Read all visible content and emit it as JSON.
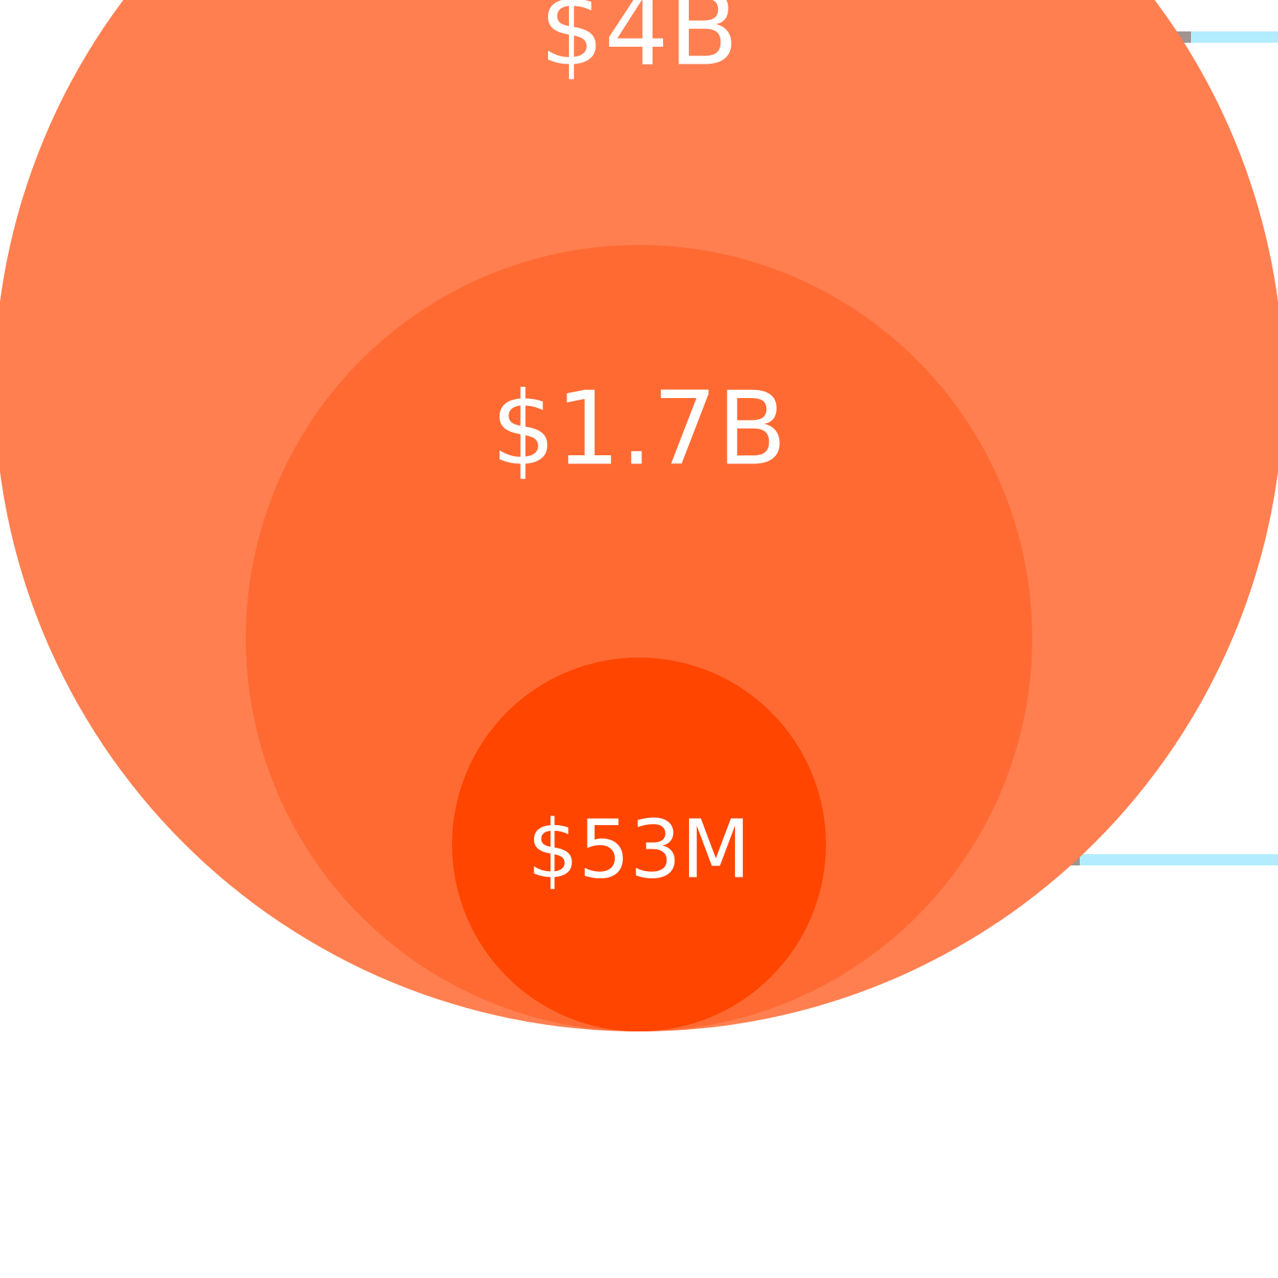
{
  "chart_data": {
    "type": "bubble",
    "title": "",
    "xlabel": "",
    "ylabel": "",
    "grid": false,
    "legend": "none",
    "items": [
      {
        "label": "$4B",
        "value": 4000000000,
        "color": "#ff7f50"
      },
      {
        "label": "$1.7B",
        "value": 1700000000,
        "color": "#ff6a33"
      },
      {
        "label": "$53M",
        "value": 53000000,
        "color": "#ff4500"
      }
    ],
    "leader_line_colors": {
      "outer": "#b3ecff",
      "inner": "#a09390"
    }
  }
}
